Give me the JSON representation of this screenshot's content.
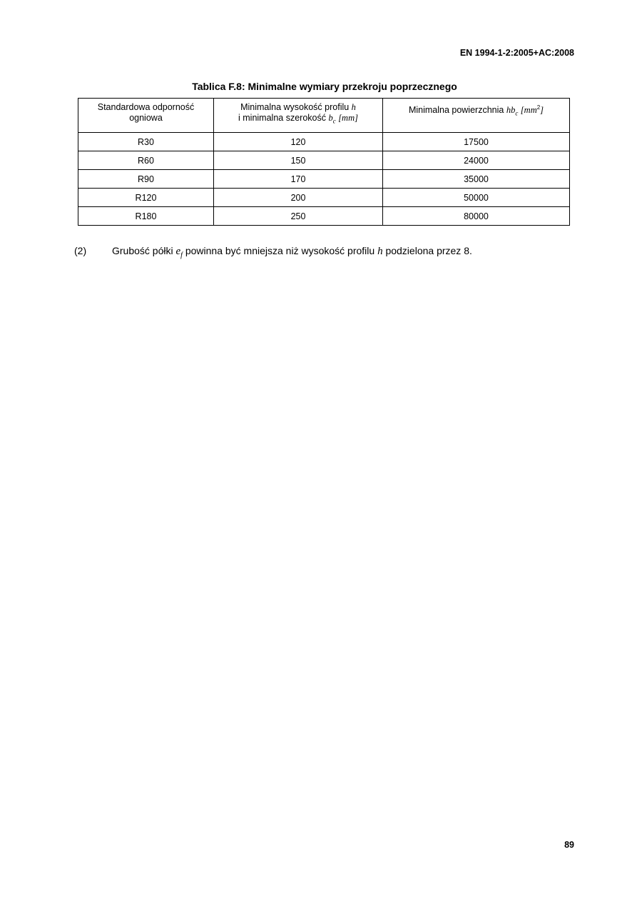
{
  "header": "EN 1994-1-2:2005+AC:2008",
  "table": {
    "title": "Tablica F.8: Minimalne wymiary przekroju poprzecznego",
    "columns": [
      {
        "line1": "Standardowa odporność",
        "line2": "ogniowa"
      },
      {
        "line1": "Minimalna wysokość profilu ",
        "line1_math": "h",
        "line2": "i minimalna szerokość ",
        "line2_math": "b",
        "line2_sub": "c",
        "line2_unit": "[mm]"
      },
      {
        "text": "Minimalna powierzchnia ",
        "math": "hb",
        "sub": "c",
        "unit_open": "[mm",
        "unit_sup": "2",
        "unit_close": "]"
      }
    ],
    "rows": [
      [
        "R30",
        "120",
        "17500"
      ],
      [
        "R60",
        "150",
        "24000"
      ],
      [
        "R90",
        "170",
        "35000"
      ],
      [
        "R120",
        "200",
        "50000"
      ],
      [
        "R180",
        "250",
        "80000"
      ]
    ]
  },
  "paragraph": {
    "number": "(2)",
    "t1": "Grubość półki ",
    "m1": "e",
    "m1_sub": "f",
    "t2": " powinna być mniejsza niż wysokość profilu ",
    "m2": "h",
    "t3": " podzielona przez 8."
  },
  "page_number": "89"
}
